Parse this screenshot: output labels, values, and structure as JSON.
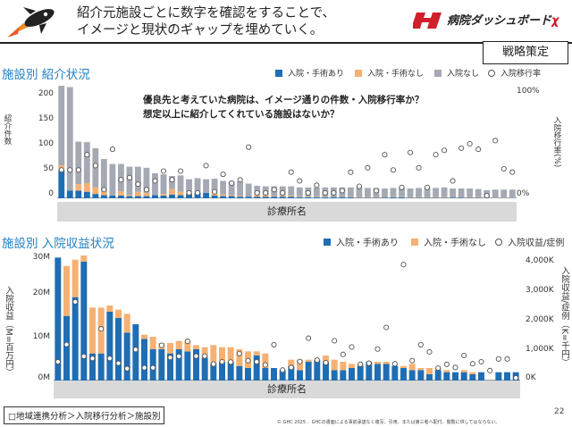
{
  "header": {
    "title": "紹介元施設ごとに数字を確認をすることで、\nイメージと現状のギャップを埋めていく。",
    "logo_text": "病院ダッシュボード",
    "logo_suffix": "χ",
    "badge": "戦略策定"
  },
  "colors": {
    "blue": "#1f6db3",
    "orange": "#f5b173",
    "gray": "#a5a9b3"
  },
  "annotation": "優良先と考えていた病院は、イメージ通りの件数・入院移行率か？\n想定以上に紹介してくれている施設はないか？",
  "footer": {
    "breadcrumb": "□地域連携分析＞入院移行分析＞施設別",
    "copyright": "© GHC 2025 ．GHCの書面による事前承諾なく複写、引用、または第三者へ配付、閲覧に供してはならない。",
    "page": "22"
  },
  "chart_data": [
    {
      "type": "bar",
      "title": "施設別 紹介状況",
      "xlabel": "診療所名",
      "ylabel": "紹介件数",
      "y2label": "入院移行率(%)",
      "yticks": [
        "200",
        "150",
        "100",
        "50",
        "0"
      ],
      "y2ticks": [
        "100%",
        "0%"
      ],
      "ylim": [
        0,
        200
      ],
      "y2lim": [
        0,
        100
      ],
      "legend": [
        "入院・手術あり",
        "入院・手術なし",
        "入院なし",
        "入院移行率"
      ],
      "series": [
        {
          "name": "入院・手術あり",
          "values": [
            52,
            14,
            14,
            12,
            8,
            6,
            5,
            5,
            4,
            4,
            4,
            6,
            5,
            7,
            6,
            8,
            10,
            10,
            5,
            4,
            4,
            3,
            3,
            3,
            3,
            3,
            3,
            3,
            2,
            2,
            2,
            2,
            2,
            2,
            2,
            1,
            1,
            1,
            1,
            2,
            2,
            1,
            1,
            1,
            1,
            1,
            1,
            1,
            1,
            1,
            0,
            0,
            0,
            0
          ]
        },
        {
          "name": "入院・手術なし",
          "values": [
            8,
            0,
            12,
            16,
            12,
            6,
            0,
            8,
            2,
            8,
            6,
            0,
            3,
            10,
            6,
            3,
            0,
            0,
            5,
            3,
            2,
            1,
            0,
            4,
            3,
            1,
            2,
            2,
            1,
            1,
            1,
            1,
            0,
            0,
            1,
            1,
            1,
            1,
            0,
            1,
            1,
            1,
            1,
            1,
            1,
            1,
            0,
            0,
            1,
            1,
            0,
            0,
            0,
            0
          ]
        },
        {
          "name": "入院なし",
          "values": [
            150,
            190,
            78,
            75,
            72,
            60,
            58,
            50,
            52,
            46,
            46,
            40,
            36,
            24,
            30,
            24,
            27,
            25,
            26,
            25,
            25,
            27,
            24,
            16,
            16,
            18,
            17,
            17,
            17,
            17,
            17,
            17,
            18,
            18,
            17,
            18,
            17,
            17,
            17,
            16,
            16,
            16,
            17,
            17,
            17,
            18,
            17,
            17,
            16,
            15,
            15,
            16,
            16,
            16
          ]
        },
        {
          "name": "入院移行率",
          "values": [
            26,
            26,
            26,
            40,
            30,
            8,
            45,
            17,
            19,
            13,
            8,
            16,
            25,
            17,
            25,
            5,
            5,
            30,
            6,
            22,
            14,
            17,
            47,
            5,
            5,
            8,
            5,
            24,
            16,
            5,
            12,
            5,
            5,
            7,
            24,
            11,
            28,
            7,
            40,
            26,
            10,
            42,
            28,
            10,
            40,
            44,
            16,
            46,
            50,
            45,
            2,
            53,
            27,
            24
          ]
        }
      ]
    },
    {
      "type": "bar",
      "title": "施設別 入院収益状況",
      "xlabel": "診療所名",
      "ylabel": "入院収益（M=百万円）",
      "y2label": "入院収益/症例（K=千円）",
      "yticks": [
        "30M",
        "20M",
        "10M",
        "0M"
      ],
      "y2ticks": [
        "4,000K",
        "3,000K",
        "2,000K",
        "1,000K",
        "0K"
      ],
      "ylim": [
        0,
        30
      ],
      "y2lim": [
        0,
        4400
      ],
      "legend": [
        "入院・手術あり",
        "入院・手術なし",
        "入院収益/症例"
      ],
      "series": [
        {
          "name": "入院・手術あり",
          "values": [
            29.5,
            15.5,
            20,
            28.5,
            6.5,
            6.5,
            16.5,
            15,
            11.5,
            13.5,
            10,
            7.5,
            7.5,
            6.5,
            7.5,
            7,
            7.5,
            5.5,
            4,
            4.5,
            4.5,
            3.5,
            3,
            6,
            3,
            3,
            2.5,
            3.5,
            2.5,
            4.5,
            5,
            4.5,
            2.5,
            2.5,
            3,
            3.5,
            4.5,
            4,
            4,
            3.5,
            3,
            2.5,
            2.5,
            1.5,
            2.5,
            2,
            2,
            2,
            1.5,
            2,
            0,
            2,
            2,
            2
          ]
        },
        {
          "name": "入院・手術なし",
          "values": [
            0,
            12,
            9,
            1.5,
            11,
            11,
            1.5,
            2,
            4.5,
            0,
            1,
            3,
            1.5,
            2.5,
            2,
            2.5,
            1,
            2.5,
            4.5,
            3.5,
            3.5,
            4,
            4,
            1,
            3.5,
            0,
            0,
            1.5,
            2.5,
            0.5,
            0,
            1.5,
            2.5,
            2,
            1,
            0.5,
            0,
            0.5,
            0.5,
            0,
            0.5,
            1.5,
            0.5,
            1.5,
            0.5,
            0.5,
            0,
            0.5,
            0.5,
            0,
            0,
            0,
            0,
            0
          ]
        },
        {
          "name": "入院収益/症例",
          "values": [
            660,
            1270,
            2770,
            850,
            780,
            1820,
            780,
            610,
            420,
            1090,
            450,
            450,
            1240,
            810,
            850,
            1380,
            860,
            860,
            580,
            660,
            650,
            950,
            700,
            660,
            550,
            1260,
            370,
            460,
            670,
            1490,
            720,
            630,
            1400,
            920,
            1180,
            570,
            610,
            1110,
            1870,
            590,
            4080,
            700,
            1260,
            1010,
            440,
            570,
            460,
            880,
            590,
            660,
            350,
            760,
            760,
            0
          ]
        }
      ]
    }
  ]
}
